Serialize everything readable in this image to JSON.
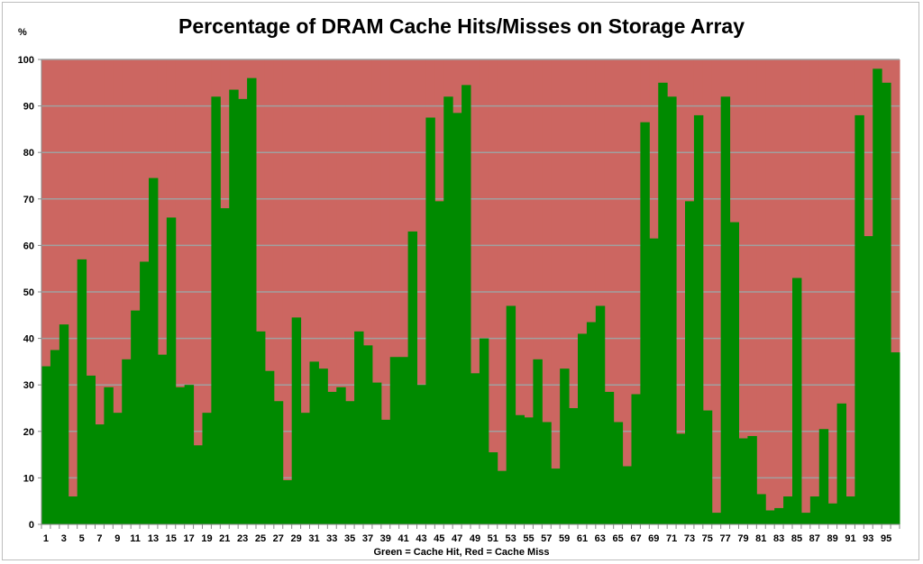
{
  "chart_data": {
    "type": "bar",
    "stacked_complement": true,
    "title": "Percentage of DRAM Cache Hits/Misses on Storage Array",
    "ylabel": "%",
    "xlabel": "Green = Cache Hit, Red = Cache Miss",
    "ylim": [
      0,
      100
    ],
    "yticks": [
      0,
      10,
      20,
      30,
      40,
      50,
      60,
      70,
      80,
      90,
      100
    ],
    "grid": true,
    "colors": {
      "hit": "#008a00",
      "miss": "#cc6661",
      "grid": "#a0a0a0"
    },
    "categories": [
      1,
      2,
      3,
      4,
      5,
      6,
      7,
      8,
      9,
      10,
      11,
      12,
      13,
      14,
      15,
      16,
      17,
      18,
      19,
      20,
      21,
      22,
      23,
      24,
      25,
      26,
      27,
      28,
      29,
      30,
      31,
      32,
      33,
      34,
      35,
      36,
      37,
      38,
      39,
      40,
      41,
      42,
      43,
      44,
      45,
      46,
      47,
      48,
      49,
      50,
      51,
      52,
      53,
      54,
      55,
      56,
      57,
      58,
      59,
      60,
      61,
      62,
      63,
      64,
      65,
      66,
      67,
      68,
      69,
      70,
      71,
      72,
      73,
      74,
      75,
      76,
      77,
      78,
      79,
      80,
      81,
      82,
      83,
      84,
      85,
      86,
      87,
      88,
      89,
      90,
      91,
      92,
      93,
      94,
      95,
      96
    ],
    "xtick_labels": [
      1,
      3,
      5,
      7,
      9,
      11,
      13,
      15,
      17,
      19,
      21,
      23,
      25,
      27,
      29,
      31,
      33,
      35,
      37,
      39,
      41,
      43,
      45,
      47,
      49,
      51,
      53,
      55,
      57,
      59,
      61,
      63,
      65,
      67,
      69,
      71,
      73,
      75,
      77,
      79,
      81,
      83,
      85,
      87,
      89,
      91,
      93,
      95
    ],
    "values": [
      34,
      37.5,
      43,
      6,
      57,
      32,
      21.5,
      29.5,
      24,
      35.5,
      46,
      56.5,
      74.5,
      36.5,
      66,
      29.5,
      30,
      17,
      24,
      92,
      68,
      93.5,
      91.5,
      96,
      41.5,
      33,
      26.5,
      9.5,
      44.5,
      24,
      35,
      33.5,
      28.5,
      29.5,
      26.5,
      41.5,
      38.5,
      30.5,
      22.5,
      36,
      36,
      63,
      30,
      87.5,
      69.5,
      92,
      88.5,
      94.5,
      32.5,
      40,
      15.5,
      11.5,
      47,
      23.5,
      23,
      35.5,
      22,
      12,
      33.5,
      25,
      41,
      43.5,
      47,
      28.5,
      22,
      12.5,
      28,
      86.5,
      61.5,
      95,
      92,
      19.5,
      69.5,
      88,
      24.5,
      2.5,
      92,
      65,
      18.5,
      19,
      6.5,
      3,
      3.5,
      6,
      53,
      2.5,
      6,
      20.5,
      4.5,
      26,
      6,
      88,
      62,
      98,
      95,
      37
    ]
  }
}
